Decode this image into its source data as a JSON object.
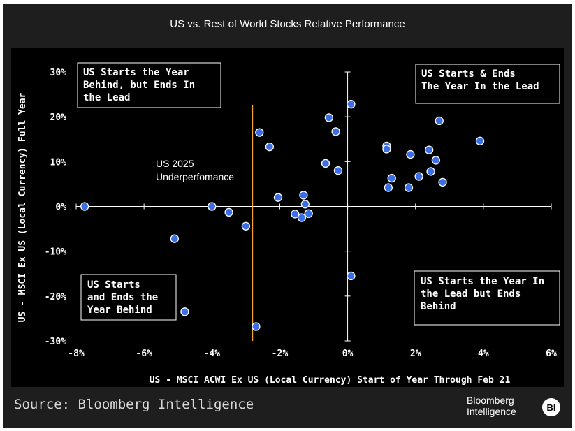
{
  "title": "US vs. Rest of World Stocks Relative Performance",
  "source": "Source: Bloomberg Intelligence",
  "brand": {
    "line1": "Bloomberg",
    "line2": "Intelligence",
    "badge": "BI"
  },
  "colors": {
    "point": "#3b6fe8",
    "marker_line": "#f5a623",
    "background": "#000000",
    "frame": "#1e1e1e"
  },
  "chart_data": {
    "type": "scatter",
    "title": "US vs. Rest of World Stocks Relative Performance",
    "xlabel": "US - MSCI ACWI Ex US (Local Currency) Start of Year Through Feb 21",
    "ylabel": "US - MSCI Ex US (Local Currency) Full Year",
    "xlim": [
      -8,
      6
    ],
    "ylim": [
      -30,
      30
    ],
    "x_ticks": [
      -8,
      -6,
      -4,
      -2,
      0,
      2,
      4,
      6
    ],
    "x_tick_labels": [
      "-8%",
      "-6%",
      "-4%",
      "-2%",
      "0%",
      "2%",
      "4%",
      "6%"
    ],
    "y_ticks": [
      -30,
      -20,
      -10,
      0,
      10,
      20,
      30
    ],
    "y_tick_labels": [
      "-30%",
      "-20%",
      "-10%",
      "0%",
      "10%",
      "20%",
      "30%"
    ],
    "grid": false,
    "marker_line": {
      "x": -2.8,
      "label_line1": "US 2025",
      "label_line2": "Underperfomance"
    },
    "quadrant_labels": [
      {
        "position": "top-left",
        "lines": [
          "US Starts the Year",
          "Behind, but Ends In",
          "the Lead"
        ]
      },
      {
        "position": "top-right",
        "lines": [
          "US Starts & Ends",
          "The Year In the Lead"
        ]
      },
      {
        "position": "bottom-left",
        "lines": [
          "US Starts",
          "and Ends the",
          "Year Behind"
        ]
      },
      {
        "position": "bottom-right",
        "lines": [
          "US Starts the Year In",
          "the Lead but Ends",
          "Behind"
        ]
      }
    ],
    "points": [
      [
        -7.75,
        0.0
      ],
      [
        -5.1,
        -7.2
      ],
      [
        -4.8,
        -23.5
      ],
      [
        -4.0,
        0.0
      ],
      [
        -3.5,
        -1.3
      ],
      [
        -3.0,
        -4.4
      ],
      [
        -2.7,
        -26.8
      ],
      [
        -2.6,
        16.5
      ],
      [
        -2.3,
        13.3
      ],
      [
        -2.05,
        2.0
      ],
      [
        -1.55,
        -1.7
      ],
      [
        -1.35,
        -2.5
      ],
      [
        -1.3,
        2.5
      ],
      [
        -1.25,
        0.5
      ],
      [
        -1.15,
        -1.6
      ],
      [
        -0.65,
        9.6
      ],
      [
        -0.55,
        19.8
      ],
      [
        -0.35,
        16.7
      ],
      [
        -0.28,
        8.0
      ],
      [
        0.1,
        22.8
      ],
      [
        0.1,
        -15.5
      ],
      [
        1.15,
        13.5
      ],
      [
        1.15,
        12.8
      ],
      [
        1.2,
        4.2
      ],
      [
        1.3,
        6.3
      ],
      [
        1.8,
        4.2
      ],
      [
        1.85,
        11.6
      ],
      [
        2.1,
        6.7
      ],
      [
        2.4,
        12.6
      ],
      [
        2.45,
        7.8
      ],
      [
        2.6,
        10.3
      ],
      [
        2.7,
        19.1
      ],
      [
        2.8,
        5.4
      ],
      [
        3.9,
        14.6
      ]
    ]
  }
}
